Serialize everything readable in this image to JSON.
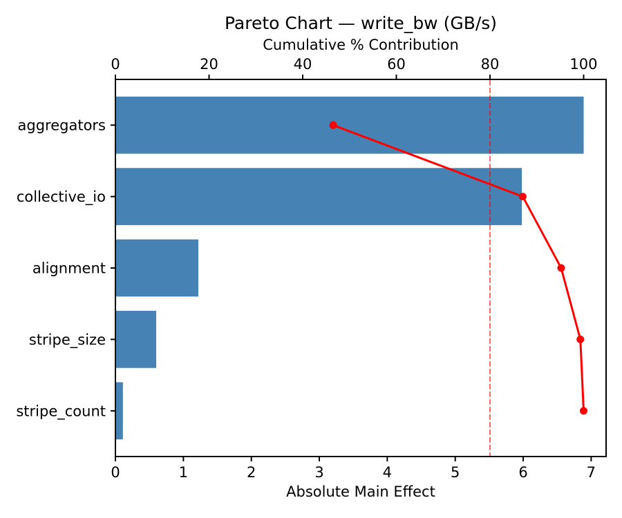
{
  "chart_data": {
    "type": "bar",
    "subtype": "pareto",
    "orientation": "horizontal",
    "title": "Pareto Chart — write_bw (GB/s)",
    "categories": [
      "aggregators",
      "collective_io",
      "alignment",
      "stripe_size",
      "stripe_count"
    ],
    "series": [
      {
        "name": "Absolute Main Effect",
        "type": "bar",
        "values": [
          6.89,
          5.98,
          1.22,
          0.6,
          0.11
        ]
      },
      {
        "name": "Cumulative % Contribution",
        "type": "line",
        "values": [
          46.5,
          87.0,
          95.2,
          99.3,
          100.0
        ]
      }
    ],
    "bottom_axis": {
      "label": "Absolute Main Effect",
      "ticks": [
        0,
        1,
        2,
        3,
        4,
        5,
        6,
        7
      ],
      "range": [
        0,
        7.22
      ]
    },
    "top_axis": {
      "label": "Cumulative % Contribution",
      "ticks": [
        0,
        20,
        40,
        60,
        80,
        100
      ],
      "range": [
        0,
        104.8
      ]
    },
    "threshold": {
      "value": 80,
      "axis": "top",
      "style": "dashed"
    },
    "grid": false,
    "legend": false,
    "colors": {
      "bar": "#4682B4",
      "line": "#FF0000",
      "threshold": "rgba(255,0,0,0.6)",
      "text": "#000000",
      "frame": "#000000",
      "background": "#FFFFFF"
    }
  }
}
